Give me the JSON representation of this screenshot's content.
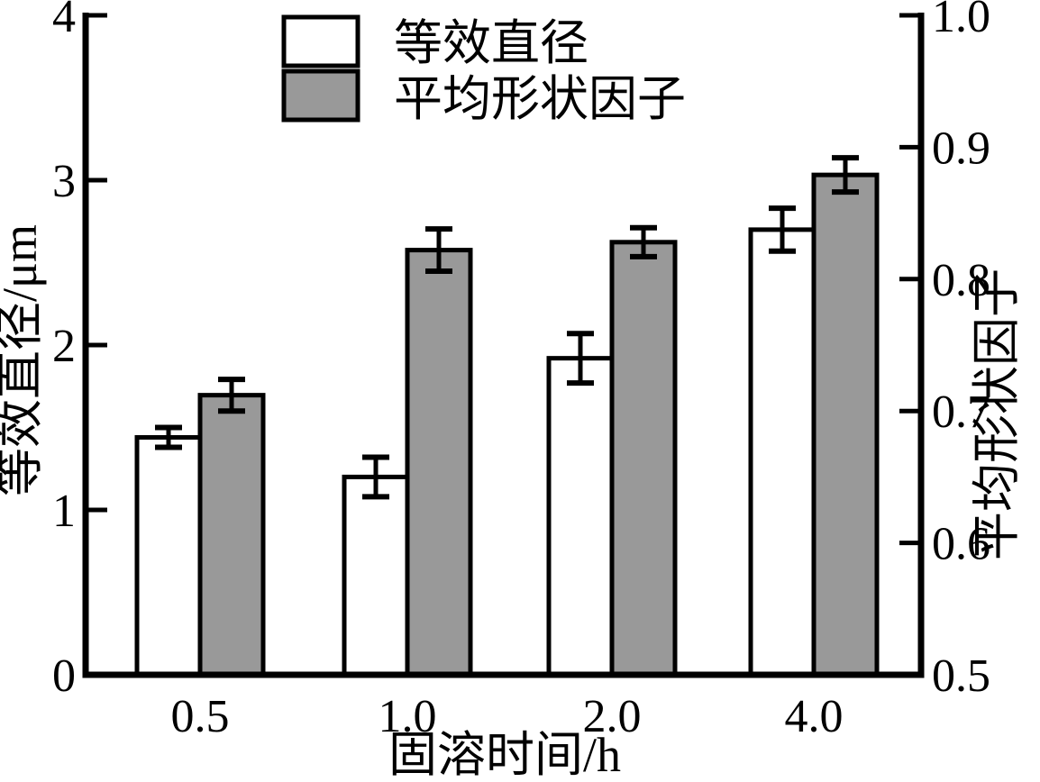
{
  "chart_data": {
    "type": "bar",
    "title": "",
    "xlabel": "固溶时间/h",
    "ylabel_left": "等效直径/μm",
    "ylabel_right": "平均形状因子",
    "categories": [
      "0.5",
      "1.0",
      "2.0",
      "4.0"
    ],
    "ylim_left": [
      0,
      4
    ],
    "yticks_left": [
      "0",
      "1",
      "2",
      "3",
      "4"
    ],
    "ylim_right": [
      0.5,
      1.0
    ],
    "yticks_right": [
      "0.5",
      "0.6",
      "0.7",
      "0.8",
      "0.9",
      "1.0"
    ],
    "grid": false,
    "legend_position": "top-center-inside",
    "series": [
      {
        "name": "等效直径",
        "axis": "left",
        "fill": "#ffffff",
        "values": [
          1.44,
          1.2,
          1.92,
          2.7
        ],
        "errors": [
          0.06,
          0.12,
          0.15,
          0.13
        ]
      },
      {
        "name": "平均形状因子",
        "axis": "right",
        "fill": "#999999",
        "values": [
          0.712,
          0.822,
          0.828,
          0.879
        ],
        "errors": [
          0.012,
          0.016,
          0.011,
          0.013
        ]
      }
    ],
    "colors": {
      "bar_stroke": "#000000",
      "axis": "#000000",
      "background": "#ffffff",
      "gray_bar": "#999999"
    }
  }
}
